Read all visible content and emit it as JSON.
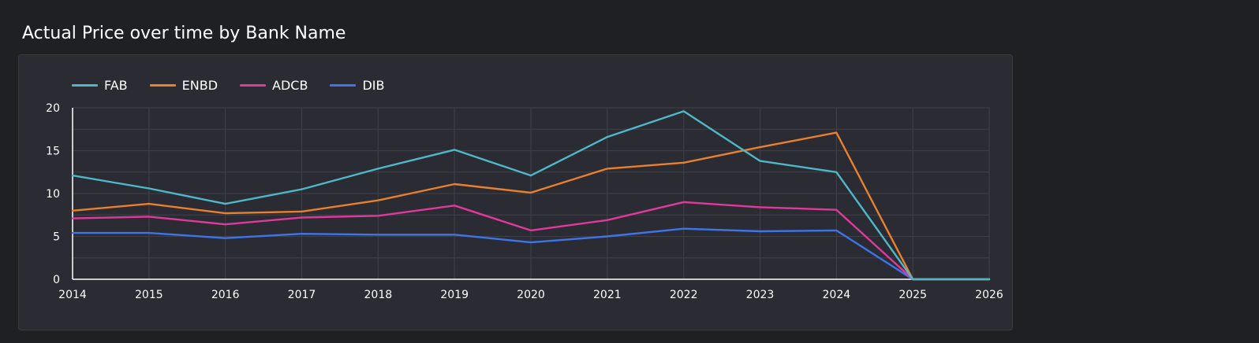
{
  "chart_data": {
    "type": "line",
    "title": "Actual Price over time by Bank Name",
    "xlabel": "",
    "ylabel": "",
    "x": [
      2014,
      2015,
      2016,
      2017,
      2018,
      2019,
      2020,
      2021,
      2022,
      2023,
      2024,
      2025,
      2026
    ],
    "xlim": [
      2014,
      2026
    ],
    "ylim": [
      0,
      20
    ],
    "yticks": [
      0,
      5,
      10,
      15,
      20
    ],
    "grid": true,
    "legend_position": "top-left",
    "series": [
      {
        "name": "FAB",
        "color": "#4fb8c8",
        "values": [
          12.1,
          10.6,
          8.8,
          10.5,
          12.9,
          15.1,
          12.1,
          16.6,
          19.6,
          13.8,
          12.5,
          0,
          0
        ]
      },
      {
        "name": "ENBD",
        "color": "#e8802e",
        "values": [
          8.0,
          8.8,
          7.7,
          7.9,
          9.2,
          11.1,
          10.1,
          12.9,
          13.6,
          15.4,
          17.1,
          0,
          0
        ]
      },
      {
        "name": "ADCB",
        "color": "#e0399c",
        "values": [
          7.1,
          7.3,
          6.4,
          7.2,
          7.4,
          8.6,
          5.7,
          6.9,
          9.0,
          8.4,
          8.1,
          0,
          0
        ]
      },
      {
        "name": "DIB",
        "color": "#3f73e8",
        "values": [
          5.4,
          5.4,
          4.8,
          5.3,
          5.2,
          5.2,
          4.3,
          5.0,
          5.9,
          5.6,
          5.7,
          0,
          0
        ]
      }
    ]
  }
}
